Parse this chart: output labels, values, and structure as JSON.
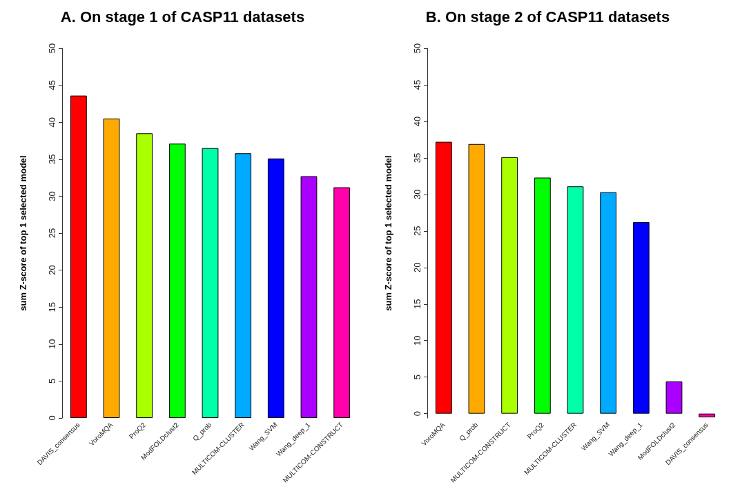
{
  "chart_data": [
    {
      "type": "bar",
      "title": "A. On stage 1 of CASP11 datasets",
      "ylabel": "sum Z-score of top 1 selected model",
      "categories": [
        "DAVIS_consensus",
        "VoroMQA",
        "ProQ2",
        "ModFOLDclust2",
        "Q_prob",
        "MULTICOM-CLUSTER",
        "Wang_SVM",
        "Wang_deep_1",
        "MULTICOM-CONSTRUCT"
      ],
      "values": [
        43.6,
        40.5,
        38.5,
        37.1,
        36.5,
        35.8,
        35.1,
        32.7,
        31.2
      ],
      "colors": [
        "#ff0000",
        "#ffaa00",
        "#aaff00",
        "#00ff00",
        "#00ffaa",
        "#00aaff",
        "#0000ff",
        "#aa00ff",
        "#ff00aa"
      ],
      "ylim": [
        0,
        50
      ],
      "yticks": [
        0,
        5,
        10,
        15,
        20,
        25,
        30,
        35,
        40,
        45,
        50
      ],
      "grid": false
    },
    {
      "type": "bar",
      "title": "B. On stage 2 of CASP11 datasets",
      "ylabel": "sum Z-score of top 1 selected model",
      "categories": [
        "VoroMQA",
        "Q_prob",
        "MULTICOM-CONSTRUCT",
        "ProQ2",
        "MULTICOM-CLUSTER",
        "Wang_SVM",
        "Wang_deep_1",
        "ModFOLDclust2",
        "DAVIS_consensus"
      ],
      "values": [
        37.2,
        36.9,
        35.1,
        32.3,
        31.1,
        30.3,
        26.2,
        4.4,
        -0.5
      ],
      "colors": [
        "#ff0000",
        "#ffaa00",
        "#aaff00",
        "#00ff00",
        "#00ffaa",
        "#00aaff",
        "#0000ff",
        "#aa00ff",
        "#ff00aa"
      ],
      "ylim": [
        -0.6,
        50
      ],
      "yticks": [
        0,
        5,
        10,
        15,
        20,
        25,
        30,
        35,
        40,
        45,
        50
      ],
      "grid": false
    }
  ]
}
